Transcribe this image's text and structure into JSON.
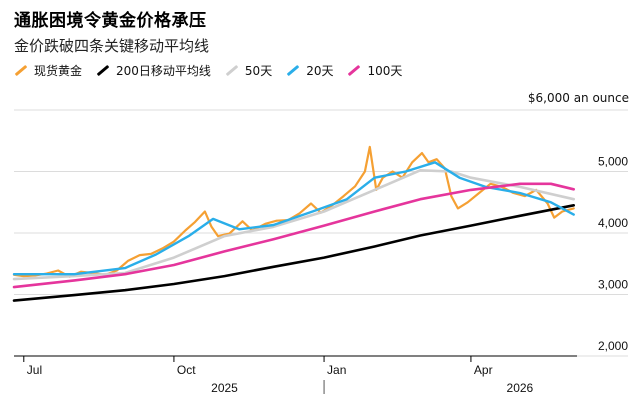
{
  "chart_data": {
    "type": "line",
    "title": "通胀困境令黄金价格承压",
    "subtitle": "金价跌破四条关键移动平均线",
    "unit_label": "$6,000 an ounce",
    "ylim": [
      2000,
      6000
    ],
    "y_ticks": [
      {
        "value": 5000,
        "label": "5,000"
      },
      {
        "value": 4000,
        "label": "4,000"
      },
      {
        "value": 3000,
        "label": "3,000"
      },
      {
        "value": 2000,
        "label": "2,000"
      }
    ],
    "xlim": [
      "2025-06-25",
      "2026-06-05"
    ],
    "x_ticks": [
      {
        "date": "2025-07-01",
        "label": "Jul"
      },
      {
        "date": "2025-10-01",
        "label": "Oct"
      },
      {
        "date": "2026-01-01",
        "label": "Jan"
      },
      {
        "date": "2026-04-01",
        "label": "Apr"
      }
    ],
    "year_labels": [
      {
        "date": "2025-11-01",
        "label": "2025"
      },
      {
        "date": "2026-05-01",
        "label": "2026"
      }
    ],
    "year_divider_date": "2026-01-01",
    "grid": true,
    "legend_position": "top-left",
    "series": [
      {
        "name": "现货黄金",
        "color": "#f5a033",
        "width": 2.2,
        "points": [
          [
            "2025-06-25",
            3320
          ],
          [
            "2025-07-01",
            3300
          ],
          [
            "2025-07-08",
            3310
          ],
          [
            "2025-07-15",
            3340
          ],
          [
            "2025-07-22",
            3390
          ],
          [
            "2025-07-29",
            3290
          ],
          [
            "2025-08-05",
            3370
          ],
          [
            "2025-08-12",
            3350
          ],
          [
            "2025-08-20",
            3320
          ],
          [
            "2025-08-27",
            3390
          ],
          [
            "2025-09-03",
            3550
          ],
          [
            "2025-09-10",
            3640
          ],
          [
            "2025-09-17",
            3660
          ],
          [
            "2025-09-24",
            3750
          ],
          [
            "2025-10-01",
            3860
          ],
          [
            "2025-10-08",
            4040
          ],
          [
            "2025-10-14",
            4180
          ],
          [
            "2025-10-20",
            4350
          ],
          [
            "2025-10-24",
            4100
          ],
          [
            "2025-10-28",
            3950
          ],
          [
            "2025-11-04",
            3990
          ],
          [
            "2025-11-12",
            4190
          ],
          [
            "2025-11-18",
            4040
          ],
          [
            "2025-11-26",
            4150
          ],
          [
            "2025-12-03",
            4200
          ],
          [
            "2025-12-10",
            4210
          ],
          [
            "2025-12-17",
            4320
          ],
          [
            "2025-12-24",
            4480
          ],
          [
            "2025-12-30",
            4330
          ],
          [
            "2026-01-06",
            4450
          ],
          [
            "2026-01-13",
            4600
          ],
          [
            "2026-01-20",
            4760
          ],
          [
            "2026-01-26",
            5000
          ],
          [
            "2026-01-29",
            5400
          ],
          [
            "2026-02-02",
            4700
          ],
          [
            "2026-02-06",
            4900
          ],
          [
            "2026-02-12",
            5000
          ],
          [
            "2026-02-18",
            4900
          ],
          [
            "2026-02-24",
            5150
          ],
          [
            "2026-03-02",
            5300
          ],
          [
            "2026-03-06",
            5150
          ],
          [
            "2026-03-11",
            5200
          ],
          [
            "2026-03-16",
            5050
          ],
          [
            "2026-03-20",
            4600
          ],
          [
            "2026-03-24",
            4400
          ],
          [
            "2026-03-30",
            4500
          ],
          [
            "2026-04-06",
            4650
          ],
          [
            "2026-04-13",
            4800
          ],
          [
            "2026-04-20",
            4750
          ],
          [
            "2026-04-27",
            4650
          ],
          [
            "2026-05-04",
            4600
          ],
          [
            "2026-05-11",
            4700
          ],
          [
            "2026-05-18",
            4480
          ],
          [
            "2026-05-22",
            4250
          ],
          [
            "2026-05-27",
            4350
          ],
          [
            "2026-06-03",
            4400
          ]
        ]
      },
      {
        "name": "200日移动平均线",
        "color": "#000000",
        "width": 2.6,
        "points": [
          [
            "2025-06-25",
            2900
          ],
          [
            "2025-08-01",
            2990
          ],
          [
            "2025-09-01",
            3070
          ],
          [
            "2025-10-01",
            3170
          ],
          [
            "2025-11-01",
            3300
          ],
          [
            "2025-12-01",
            3450
          ],
          [
            "2026-01-01",
            3600
          ],
          [
            "2026-02-01",
            3780
          ],
          [
            "2026-03-01",
            3960
          ],
          [
            "2026-04-01",
            4120
          ],
          [
            "2026-05-01",
            4280
          ],
          [
            "2026-06-03",
            4450
          ]
        ]
      },
      {
        "name": "50天",
        "color": "#cfcfcf",
        "width": 2.6,
        "points": [
          [
            "2025-06-25",
            3250
          ],
          [
            "2025-08-01",
            3300
          ],
          [
            "2025-09-01",
            3350
          ],
          [
            "2025-10-01",
            3600
          ],
          [
            "2025-11-01",
            3950
          ],
          [
            "2025-12-01",
            4100
          ],
          [
            "2026-01-01",
            4350
          ],
          [
            "2026-02-01",
            4700
          ],
          [
            "2026-03-01",
            5020
          ],
          [
            "2026-03-20",
            5000
          ],
          [
            "2026-04-01",
            4900
          ],
          [
            "2026-05-01",
            4750
          ],
          [
            "2026-06-03",
            4550
          ]
        ]
      },
      {
        "name": "20天",
        "color": "#2aaee9",
        "width": 2.4,
        "points": [
          [
            "2025-06-25",
            3330
          ],
          [
            "2025-08-01",
            3330
          ],
          [
            "2025-09-01",
            3430
          ],
          [
            "2025-09-20",
            3650
          ],
          [
            "2025-10-10",
            3950
          ],
          [
            "2025-10-25",
            4230
          ],
          [
            "2025-11-10",
            4060
          ],
          [
            "2025-12-01",
            4130
          ],
          [
            "2025-12-25",
            4350
          ],
          [
            "2026-01-15",
            4550
          ],
          [
            "2026-02-01",
            4900
          ],
          [
            "2026-02-20",
            5000
          ],
          [
            "2026-03-10",
            5150
          ],
          [
            "2026-03-25",
            4900
          ],
          [
            "2026-04-10",
            4750
          ],
          [
            "2026-05-01",
            4650
          ],
          [
            "2026-05-20",
            4500
          ],
          [
            "2026-06-03",
            4300
          ]
        ]
      },
      {
        "name": "100天",
        "color": "#e5359c",
        "width": 2.6,
        "points": [
          [
            "2025-06-25",
            3120
          ],
          [
            "2025-08-01",
            3230
          ],
          [
            "2025-09-01",
            3330
          ],
          [
            "2025-10-01",
            3480
          ],
          [
            "2025-11-01",
            3700
          ],
          [
            "2025-12-01",
            3900
          ],
          [
            "2026-01-01",
            4120
          ],
          [
            "2026-02-01",
            4350
          ],
          [
            "2026-03-01",
            4550
          ],
          [
            "2026-04-01",
            4700
          ],
          [
            "2026-05-01",
            4800
          ],
          [
            "2026-05-20",
            4800
          ],
          [
            "2026-06-03",
            4710
          ]
        ]
      }
    ]
  }
}
